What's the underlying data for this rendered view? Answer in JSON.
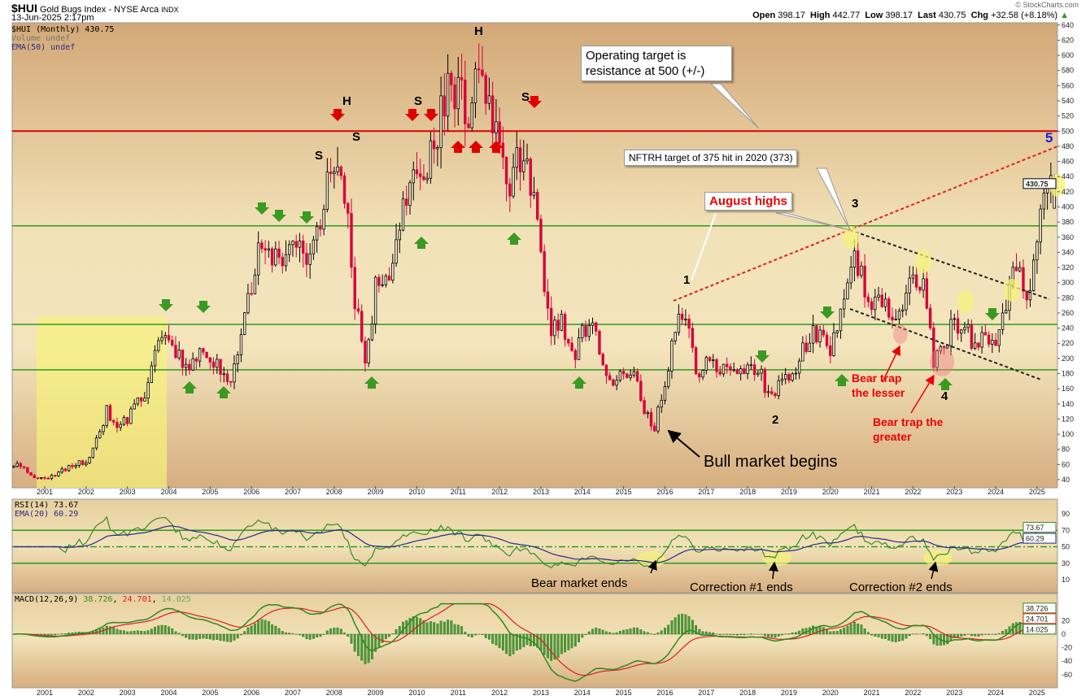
{
  "header": {
    "symbol": "$HUI",
    "name": "Gold Bugs Index - NYSE Arca",
    "exchange": "INDX",
    "datetime": "13-Jun-2025 2:17pm",
    "watermark": "© StockCharts.com",
    "ohlc": {
      "open_label": "Open",
      "open": "398.17",
      "high_label": "High",
      "high": "442.77",
      "low_label": "Low",
      "low": "398.17",
      "last_label": "Last",
      "last": "430.75",
      "chg_label": "Chg",
      "chg": "+32.58 (+8.18%)"
    }
  },
  "legend": {
    "price": "$HUI (Monthly) 430.75",
    "volume": "Volume undef",
    "ema": "EMA(50) undef",
    "rsi": "RSI(14) 73.67",
    "rsi_ema": "EMA(20) 60.29",
    "macd_label": "MACD(12,26,9)",
    "macd": "38.726",
    "signal": "24.701",
    "hist": "14.025"
  },
  "colors": {
    "up": "#000000",
    "down": "#d8003a",
    "resistance": "#e00000",
    "support": "#2e9a1e",
    "rsi": "#3a8a2a",
    "rsi_ema": "#2a2a8a",
    "macd": "#2e8a1e",
    "signal": "#d82020",
    "highlight": "#f7f27a"
  },
  "chart_data": [
    {
      "type": "candlestick",
      "title": "$HUI (Monthly)",
      "frequency": "monthly",
      "x_ticks": [
        "2001",
        "2002",
        "2003",
        "2004",
        "2005",
        "2006",
        "2007",
        "2008",
        "2009",
        "2010",
        "2011",
        "2012",
        "2013",
        "2014",
        "2015",
        "2016",
        "2017",
        "2018",
        "2019",
        "2020",
        "2021",
        "2022",
        "2023",
        "2024",
        "2025"
      ],
      "y_ticks": [
        40,
        60,
        80,
        100,
        120,
        140,
        160,
        180,
        200,
        220,
        240,
        260,
        280,
        300,
        320,
        340,
        360,
        380,
        400,
        420,
        440,
        460,
        480,
        500,
        520,
        540,
        560,
        580,
        600,
        620,
        640
      ],
      "ylim": [
        30,
        645
      ],
      "last_value": "430.75",
      "approx_quarterly_close": {
        "start": "2000-Q2",
        "values": [
          60,
          55,
          45,
          40,
          45,
          55,
          60,
          65,
          90,
          130,
          110,
          120,
          140,
          160,
          220,
          230,
          200,
          180,
          215,
          200,
          190,
          175,
          230,
          300,
          350,
          330,
          335,
          340,
          340,
          350,
          410,
          450,
          420,
          280,
          200,
          290,
          300,
          360,
          410,
          440,
          460,
          500,
          560,
          560,
          520,
          600,
          520,
          470,
          420,
          470,
          430,
          330,
          230,
          250,
          200,
          230,
          240,
          190,
          175,
          175,
          180,
          130,
          110,
          170,
          240,
          260,
          180,
          195,
          190,
          190,
          190,
          185,
          190,
          150,
          165,
          175,
          200,
          230,
          230,
          200,
          270,
          340,
          310,
          270,
          280,
          250,
          270,
          300,
          300,
          200,
          220,
          250,
          240,
          220,
          230,
          230,
          280,
          320,
          280,
          350,
          430.75
        ]
      },
      "horizontal_lines": [
        {
          "value": 500,
          "color": "red"
        },
        {
          "value": 375,
          "color": "green"
        },
        {
          "value": 245,
          "color": "green"
        },
        {
          "value": 185,
          "color": "green"
        }
      ],
      "annotations": {
        "operating_target": "Operating target is resistance at 500 (+/-)",
        "nftrh": "NFTRH target of 375 hit in 2020 (373)",
        "august_highs": "August highs",
        "bull_market": "Bull market begins",
        "bear_trap_lesser": "Bear trap the lesser",
        "bear_trap_greater": "Bear trap the greater",
        "pattern_labels": [
          "S",
          "H",
          "S",
          "S",
          "H",
          "S"
        ],
        "wave_labels": [
          "1",
          "2",
          "3",
          "4",
          "5"
        ]
      }
    },
    {
      "type": "line",
      "title": "RSI(14)",
      "y_ticks": [
        10,
        30,
        50,
        70,
        90
      ],
      "ylim": [
        0,
        100
      ],
      "last": "73.67",
      "ema_last": "60.29",
      "levels": [
        70,
        50,
        30
      ],
      "annotations": [
        "Bear market ends",
        "Correction #1 ends",
        "Correction #2 ends"
      ]
    },
    {
      "type": "line",
      "title": "MACD(12,26,9)",
      "y_ticks": [
        -60,
        -40,
        -20,
        0,
        20
      ],
      "last": {
        "macd": "38.726",
        "signal": "24.701",
        "histogram": "14.025"
      }
    }
  ]
}
